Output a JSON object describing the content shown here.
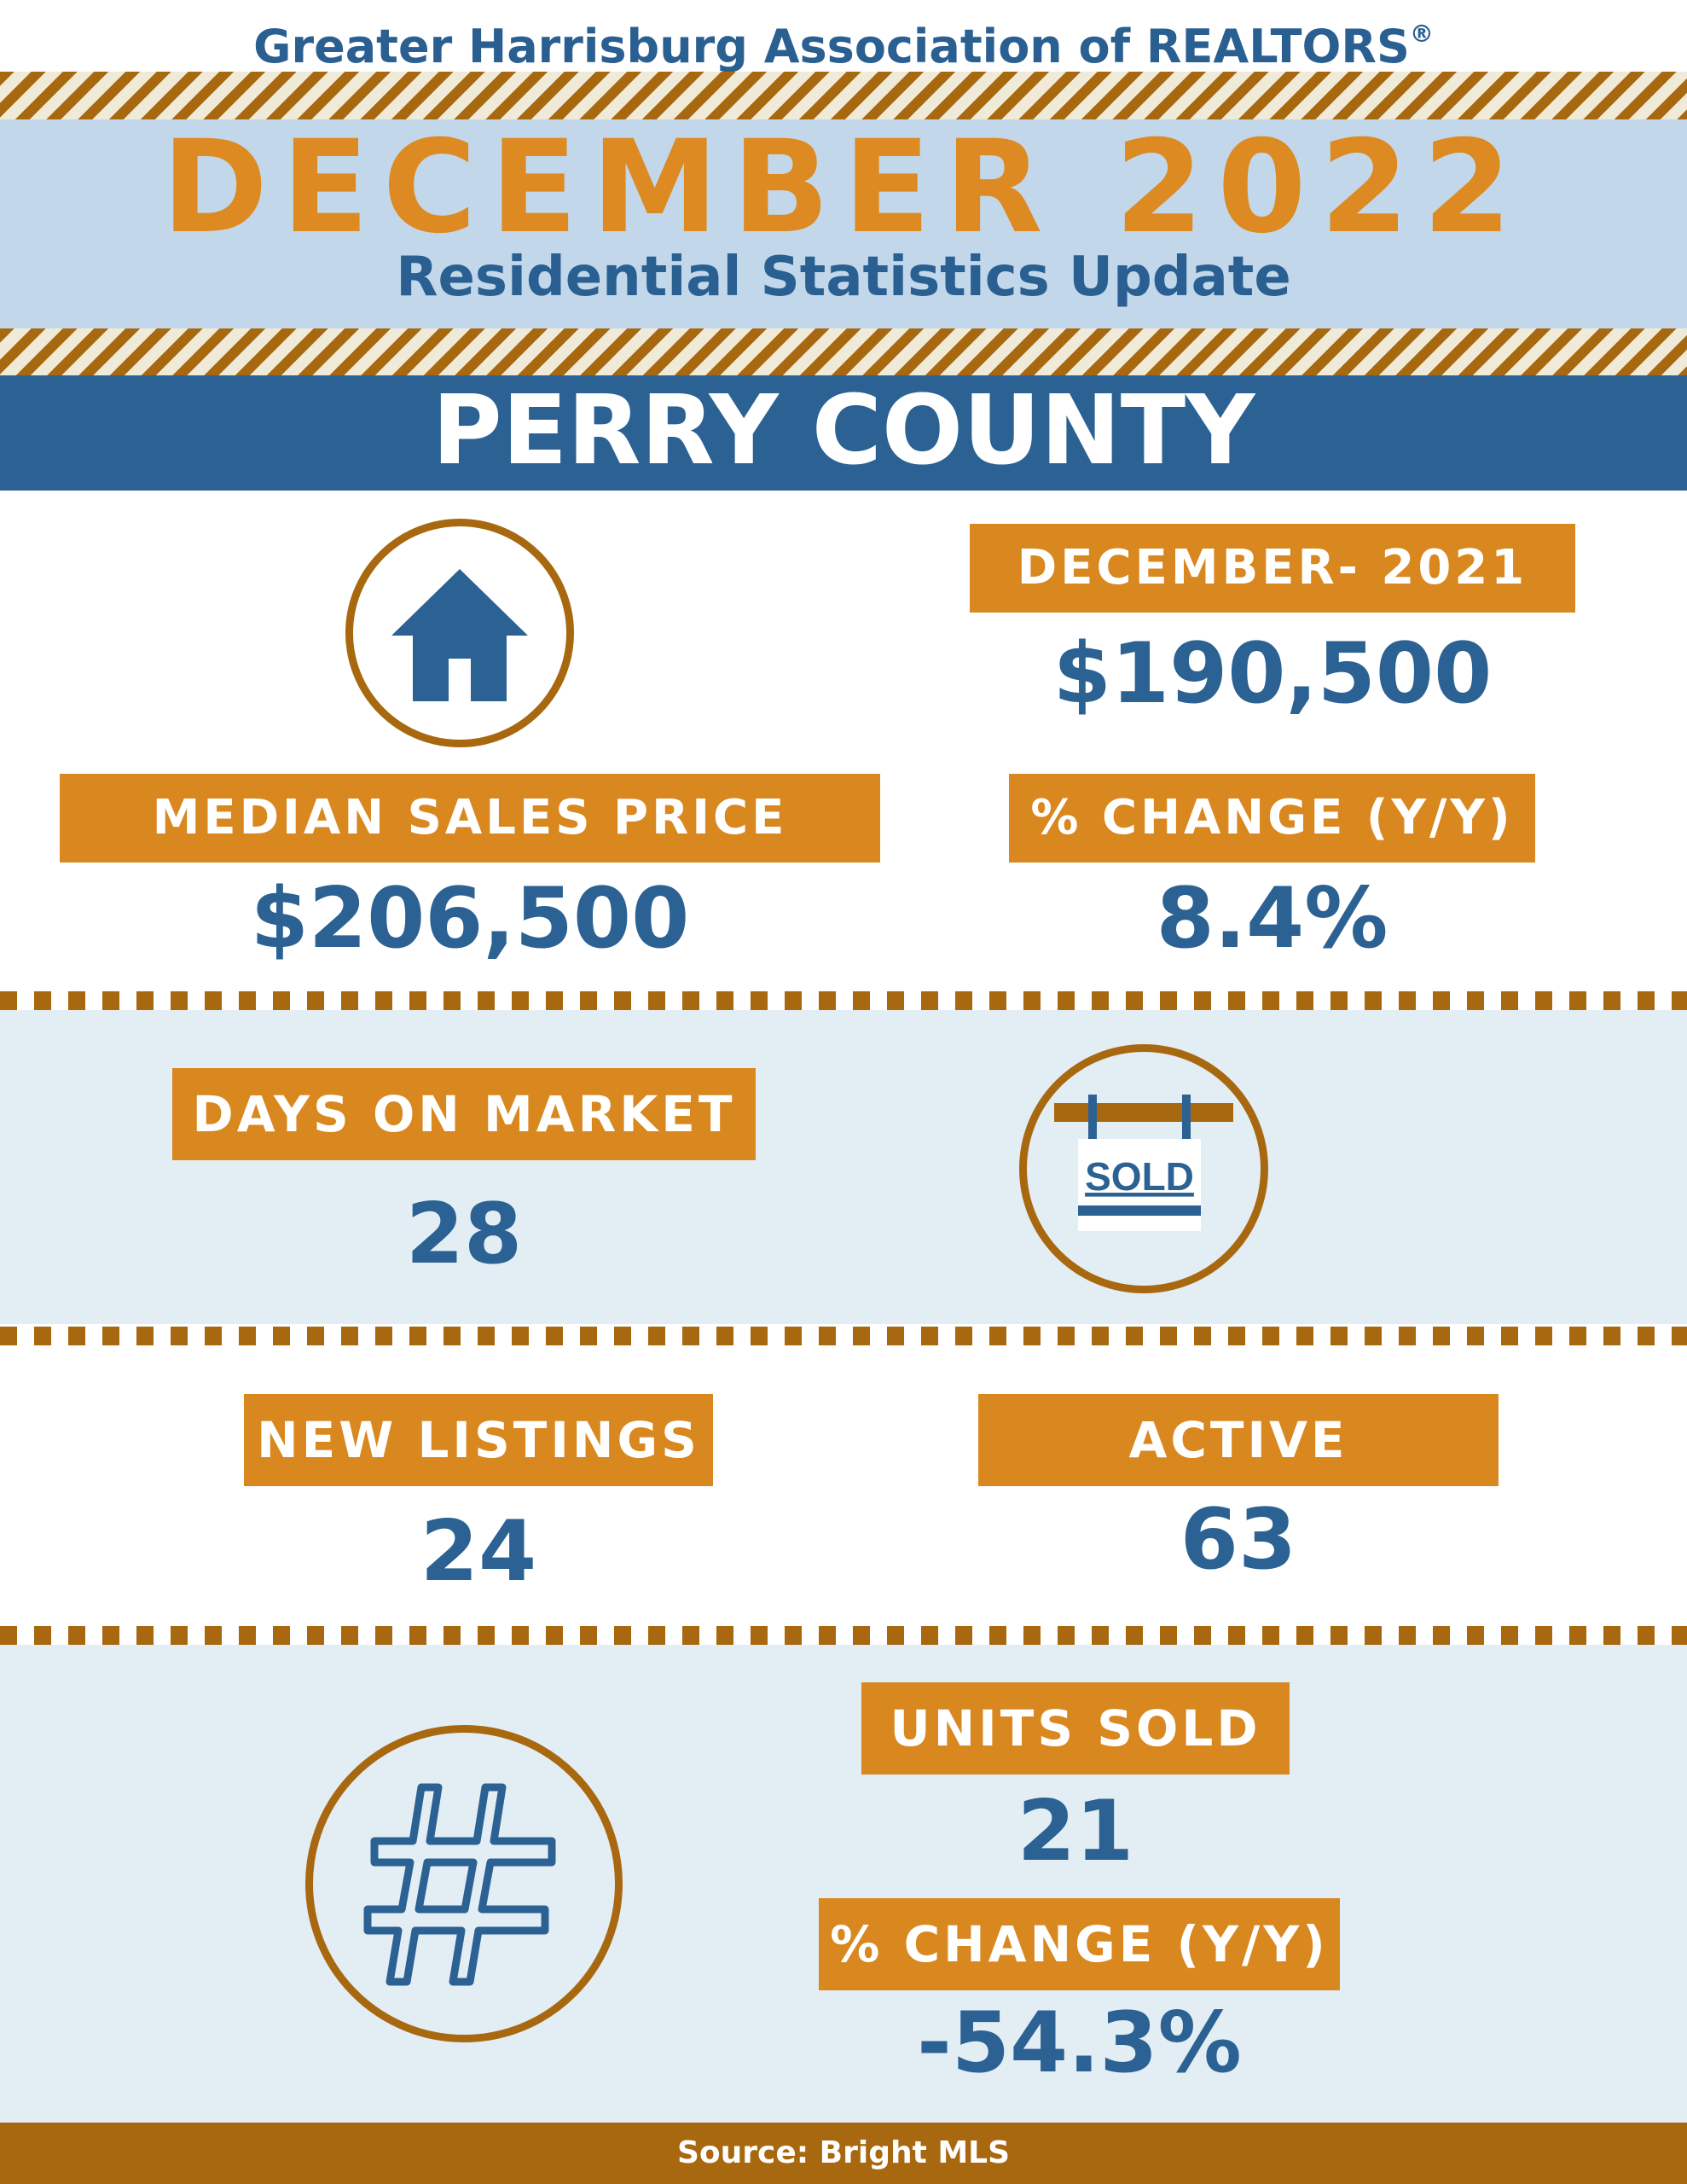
{
  "header": {
    "organization": "Greater Harrisburg Association of REALTORS",
    "registered_mark": "®",
    "period": "DECEMBER 2022",
    "subtitle": "Residential Statistics Update",
    "county": "PERRY COUNTY"
  },
  "median_sales_price": {
    "label": "MEDIAN SALES PRICE",
    "value": "$206,500",
    "prior_label": "DECEMBER- 2021",
    "prior_value": "$190,500",
    "change_label": "% CHANGE (Y/Y)",
    "change_value": "8.4%",
    "icon": "house-icon"
  },
  "days_on_market": {
    "label": "DAYS ON MARKET",
    "value": "28",
    "icon": "sold-sign-icon",
    "icon_text": "SOLD"
  },
  "listings": {
    "new_label": "NEW LISTINGS",
    "new_value": "24",
    "active_label": "ACTIVE LISTINGS",
    "active_value": "63"
  },
  "units_sold": {
    "label": "UNITS SOLD",
    "value": "21",
    "change_label": "% CHANGE (Y/Y)",
    "change_value": "-54.3%",
    "icon": "hashtag-icon"
  },
  "footer": {
    "source": "Source: Bright MLS"
  },
  "colors": {
    "blue": "#2b6293",
    "orange": "#d9871f",
    "brown": "#a8680f",
    "light_blue": "#c2d8ea",
    "pale_blue": "#e3edf4"
  }
}
